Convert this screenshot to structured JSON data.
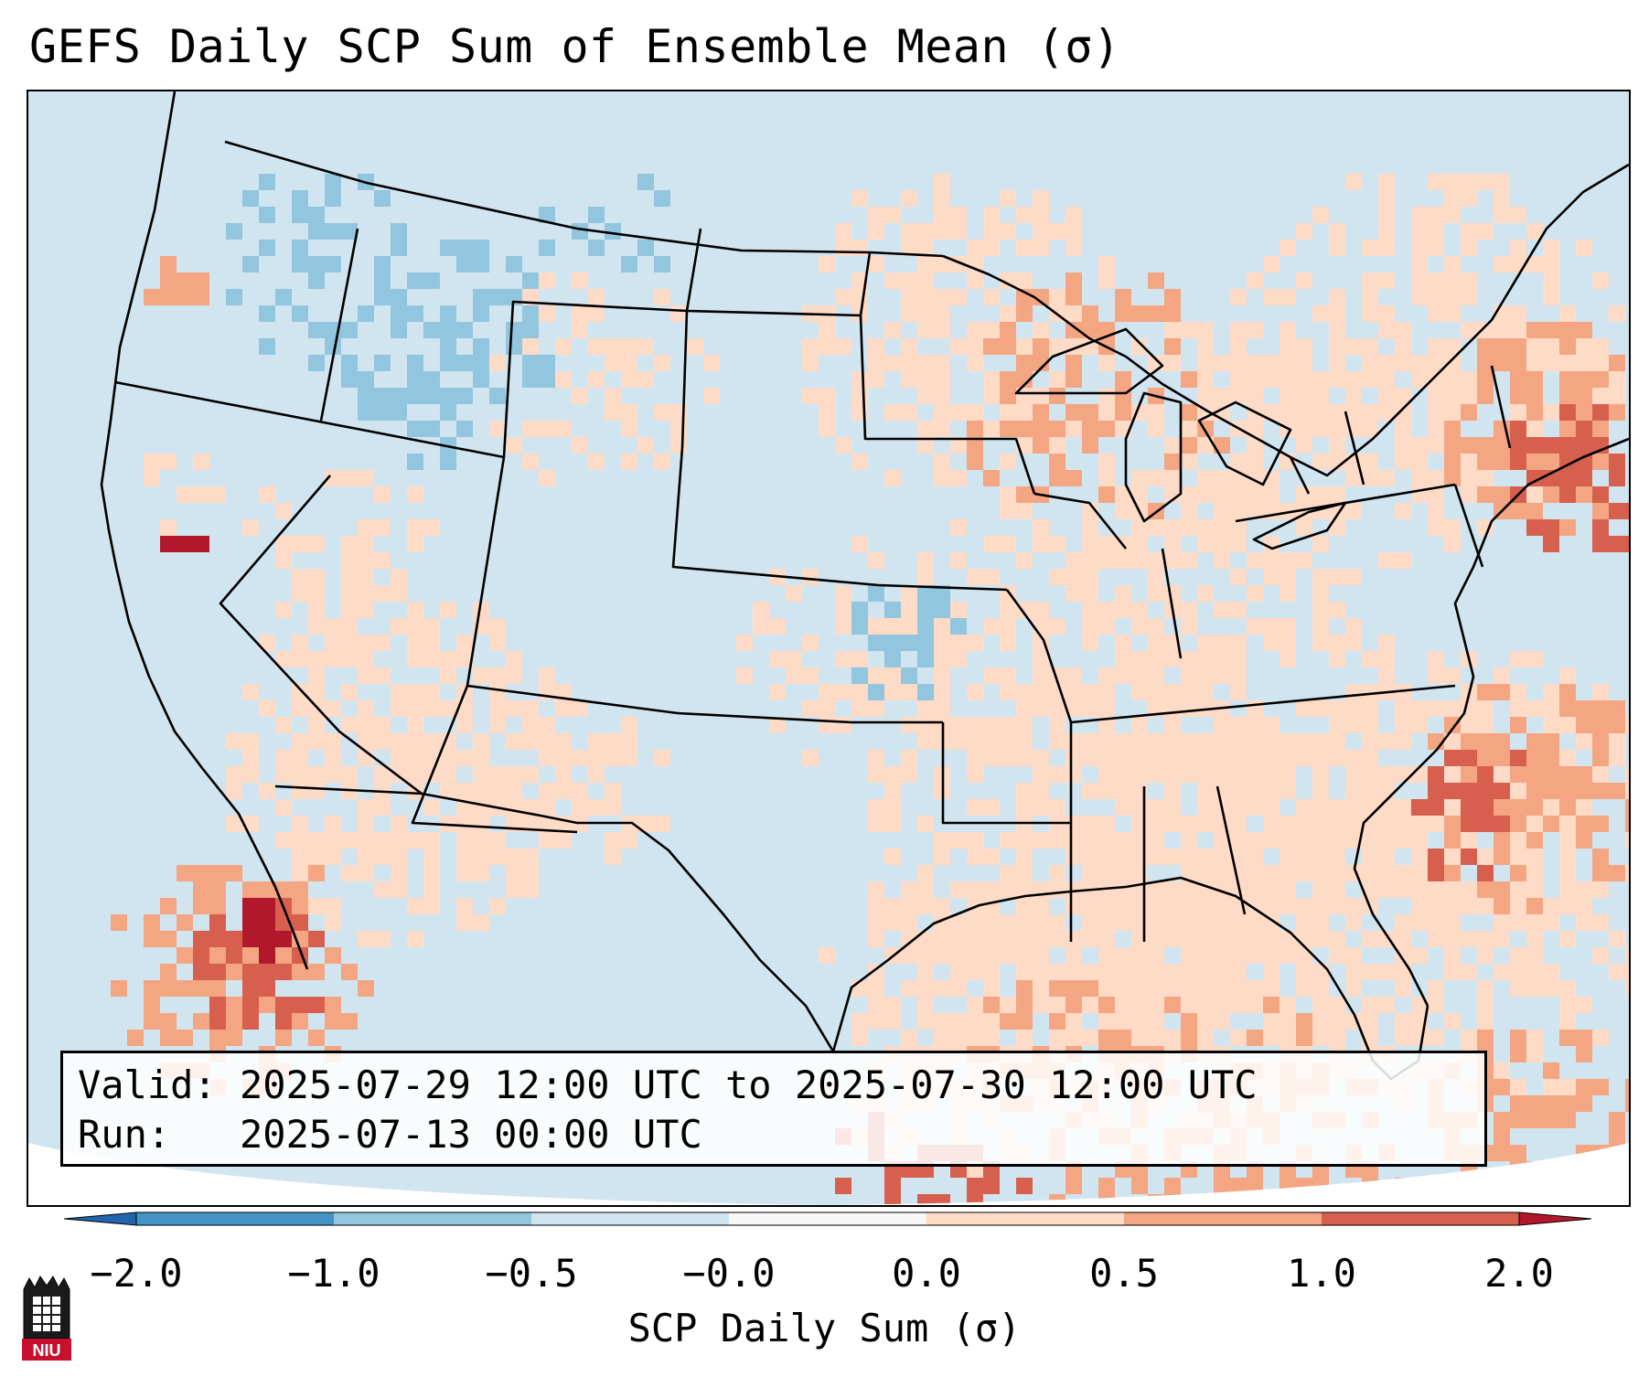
{
  "title": "GEFS Daily SCP Sum of Ensemble Mean (σ)",
  "info": {
    "valid_line": "Valid: 2025-07-29 12:00 UTC to 2025-07-30 12:00 UTC",
    "run_line": "Run:   2025-07-13 00:00 UTC"
  },
  "colorbar": {
    "label": "SCP Daily Sum (σ)",
    "ticks": [
      "−2.0",
      "−1.0",
      "−0.5",
      "−0.0",
      "0.0",
      "0.5",
      "1.0",
      "2.0"
    ],
    "colors": [
      "#2166ac",
      "#4393c3",
      "#92c5de",
      "#d1e5f0",
      "#f7f7f7",
      "#fddbc7",
      "#f4a582",
      "#d6604d",
      "#b2182b"
    ],
    "extend": "both"
  },
  "map": {
    "region": "Contiguous United States",
    "background_color": "#d1e5f0",
    "line_color": "#000000"
  },
  "logo": {
    "text": "NIU",
    "color": "#c8102e"
  }
}
